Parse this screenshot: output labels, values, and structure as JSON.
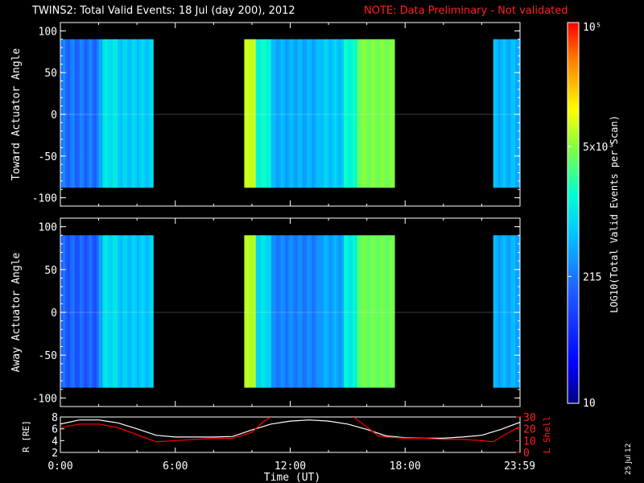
{
  "title": "TWINS2: Total Valid Events: 18 Jul (day 200), 2012",
  "note": "NOTE: Data Preliminary - Not validated",
  "date_stamp": "25 Jul 12",
  "colors": {
    "background": "#000000",
    "axes": "#ffffff",
    "note": "#ff2020",
    "lshell": "#ff0000",
    "radius": "#ffffff"
  },
  "chart_data": [
    {
      "type": "heatmap",
      "ylabel": "Toward Actuator Angle",
      "ylim": [
        -110,
        110
      ],
      "y_ticks": [
        "100",
        "50",
        "0",
        "-50",
        "-100"
      ],
      "y_tick_values": [
        100,
        50,
        0,
        -50,
        -100
      ],
      "xlim": [
        0,
        24
      ],
      "data_y_range": [
        -88,
        90
      ],
      "data_intervals_hours": [
        [
          0.0,
          4.85
        ],
        [
          9.6,
          17.45
        ],
        [
          22.6,
          24.0
        ]
      ],
      "time_slices": [
        {
          "t": [
            0.0,
            2.0
          ],
          "level": 200,
          "stripe": 0.35
        },
        {
          "t": [
            2.0,
            2.2
          ],
          "level": 500,
          "stripe": 0.25
        },
        {
          "t": [
            2.2,
            3.0
          ],
          "level": 1000,
          "stripe": 0.2
        },
        {
          "t": [
            3.0,
            4.85
          ],
          "level": 700,
          "stripe": 0.25
        },
        {
          "t": [
            9.6,
            10.2
          ],
          "level": 8000,
          "stripe": 0.1
        },
        {
          "t": [
            10.2,
            11.0
          ],
          "level": 1500,
          "stripe": 0.2
        },
        {
          "t": [
            11.0,
            13.5
          ],
          "level": 450,
          "stripe": 0.25
        },
        {
          "t": [
            13.5,
            14.8
          ],
          "level": 650,
          "stripe": 0.25
        },
        {
          "t": [
            14.8,
            15.5
          ],
          "level": 1500,
          "stripe": 0.2
        },
        {
          "t": [
            15.5,
            17.45
          ],
          "level": 4500,
          "stripe": 0.15
        },
        {
          "t": [
            22.6,
            24.0
          ],
          "level": 500,
          "stripe": 0.25
        }
      ]
    },
    {
      "type": "heatmap",
      "ylabel": "Away Actuator Angle",
      "ylim": [
        -110,
        110
      ],
      "y_ticks": [
        "100",
        "50",
        "0",
        "-50",
        "-100"
      ],
      "y_tick_values": [
        100,
        50,
        0,
        -50,
        -100
      ],
      "xlim": [
        0,
        24
      ],
      "data_y_range": [
        -88,
        90
      ],
      "data_intervals_hours": [
        [
          0.0,
          4.85
        ],
        [
          9.6,
          17.45
        ],
        [
          22.6,
          24.0
        ]
      ],
      "time_slices": [
        {
          "t": [
            0.0,
            2.0
          ],
          "level": 150,
          "stripe": 0.35
        },
        {
          "t": [
            2.0,
            2.2
          ],
          "level": 450,
          "stripe": 0.25
        },
        {
          "t": [
            2.2,
            3.0
          ],
          "level": 900,
          "stripe": 0.2
        },
        {
          "t": [
            3.0,
            4.85
          ],
          "level": 650,
          "stripe": 0.25
        },
        {
          "t": [
            9.6,
            10.2
          ],
          "level": 7000,
          "stripe": 0.1
        },
        {
          "t": [
            10.2,
            11.0
          ],
          "level": 900,
          "stripe": 0.2
        },
        {
          "t": [
            11.0,
            13.5
          ],
          "level": 250,
          "stripe": 0.25
        },
        {
          "t": [
            13.5,
            14.8
          ],
          "level": 400,
          "stripe": 0.25
        },
        {
          "t": [
            14.8,
            15.5
          ],
          "level": 1200,
          "stripe": 0.2
        },
        {
          "t": [
            15.5,
            17.45
          ],
          "level": 4000,
          "stripe": 0.15
        },
        {
          "t": [
            22.6,
            24.0
          ],
          "level": 450,
          "stripe": 0.25
        }
      ]
    },
    {
      "type": "line",
      "ylabel": "R [RE]",
      "ylabel_right": "L Shell",
      "ylim": [
        2,
        8
      ],
      "y_ticks": [
        "8",
        "6",
        "4",
        "2"
      ],
      "y_tick_values": [
        8,
        6,
        4,
        2
      ],
      "ylim_right": [
        0,
        30
      ],
      "y_ticks_right": [
        "30",
        "20",
        "10",
        "0"
      ],
      "y_tick_values_right": [
        30,
        20,
        10,
        0
      ],
      "xlim": [
        0,
        24
      ],
      "x_ticks": [
        "0:00",
        "6:00",
        "12:00",
        "18:00",
        "23:59"
      ],
      "x_tick_values": [
        0,
        6,
        12,
        18,
        23.98
      ],
      "xlabel": "Time (UT)",
      "series": [
        {
          "name": "R [RE]",
          "axis": "left",
          "color": "#ffffff",
          "x": [
            0,
            1,
            2,
            3,
            4,
            5,
            6,
            7,
            8,
            9,
            10,
            11,
            12,
            13,
            14,
            15,
            16,
            17,
            18,
            19,
            20,
            21,
            22,
            23,
            24
          ],
          "y": [
            6.8,
            7.5,
            7.5,
            7.0,
            6.0,
            4.9,
            4.6,
            4.6,
            4.6,
            4.7,
            5.8,
            6.8,
            7.3,
            7.5,
            7.3,
            6.8,
            5.9,
            4.8,
            4.5,
            4.4,
            4.4,
            4.6,
            4.9,
            5.9,
            7.1
          ]
        },
        {
          "name": "L Shell",
          "axis": "right",
          "color": "#ff0000",
          "segments": [
            {
              "x": [
                0,
                1,
                2,
                3,
                4,
                5,
                6,
                7,
                8,
                9,
                10,
                10.6,
                11.0
              ],
              "y": [
                21,
                24,
                24,
                21,
                15,
                9,
                10,
                11,
                12,
                12,
                17,
                26,
                30
              ]
            },
            {
              "x": [
                15.3,
                15.8,
                16.6,
                17,
                18,
                19,
                20,
                21,
                22,
                22.6,
                23.2,
                24
              ],
              "y": [
                30,
                24,
                14,
                13,
                12,
                12,
                11,
                11,
                10,
                9,
                15,
                22
              ]
            }
          ]
        }
      ]
    }
  ],
  "colorbar": {
    "label": "LOG10(Total Valid Events per Scan)",
    "range": [
      10,
      100000
    ],
    "scale": "log",
    "tick_labels": [
      "10",
      "215",
      "5x10^3",
      "10^5"
    ],
    "tick_values": [
      10,
      215,
      5000,
      100000
    ]
  }
}
